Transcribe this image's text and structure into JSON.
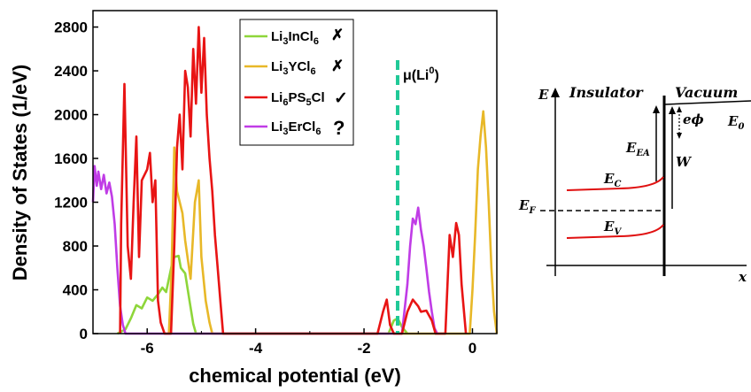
{
  "chart_data": {
    "type": "line",
    "xlabel": "chemical potential (eV)",
    "ylabel": "Density of States (1/eV)",
    "xlim": [
      -7.0,
      0.45
    ],
    "ylim": [
      0,
      2950
    ],
    "xticks": [
      "-6",
      "-4",
      "-2",
      "0"
    ],
    "yticks": [
      "0",
      "400",
      "800",
      "1200",
      "1600",
      "2000",
      "2400",
      "2800"
    ],
    "grid": false,
    "legend_position": "top-left-center",
    "vline": {
      "x": -1.38,
      "label": "μ(Li⁰)",
      "color": "#20c997"
    },
    "series": [
      {
        "name": "Li3InCl6",
        "marker": "✗",
        "marker_color": "#e01010",
        "color": "#8ed63a",
        "points": [
          [
            -6.55,
            0
          ],
          [
            -6.4,
            40
          ],
          [
            -6.3,
            140
          ],
          [
            -6.2,
            260
          ],
          [
            -6.1,
            230
          ],
          [
            -6.0,
            330
          ],
          [
            -5.9,
            300
          ],
          [
            -5.8,
            360
          ],
          [
            -5.72,
            420
          ],
          [
            -5.65,
            380
          ],
          [
            -5.6,
            500
          ],
          [
            -5.55,
            620
          ],
          [
            -5.5,
            700
          ],
          [
            -5.42,
            710
          ],
          [
            -5.38,
            600
          ],
          [
            -5.3,
            550
          ],
          [
            -5.22,
            300
          ],
          [
            -5.15,
            90
          ],
          [
            -5.1,
            0
          ],
          [
            -1.55,
            0
          ],
          [
            -1.45,
            120
          ],
          [
            -1.38,
            140
          ],
          [
            -1.3,
            60
          ],
          [
            -1.2,
            0
          ]
        ]
      },
      {
        "name": "Li3YCl6",
        "marker": "✗",
        "marker_color": "#e01010",
        "color": "#e8b828",
        "points": [
          [
            -5.6,
            0
          ],
          [
            -5.55,
            600
          ],
          [
            -5.5,
            1700
          ],
          [
            -5.45,
            1300
          ],
          [
            -5.35,
            1100
          ],
          [
            -5.3,
            850
          ],
          [
            -5.2,
            500
          ],
          [
            -5.12,
            1200
          ],
          [
            -5.05,
            1400
          ],
          [
            -5.0,
            700
          ],
          [
            -4.92,
            300
          ],
          [
            -4.85,
            100
          ],
          [
            -4.8,
            0
          ],
          [
            -0.05,
            0
          ],
          [
            0.0,
            400
          ],
          [
            0.05,
            900
          ],
          [
            0.1,
            1500
          ],
          [
            0.15,
            1800
          ],
          [
            0.2,
            2030
          ],
          [
            0.25,
            1700
          ],
          [
            0.3,
            1200
          ],
          [
            0.35,
            600
          ],
          [
            0.4,
            200
          ],
          [
            0.45,
            0
          ]
        ]
      },
      {
        "name": "Li6PS5Cl",
        "marker": "✓",
        "marker_color": "#3cc23c",
        "color": "#e81414",
        "points": [
          [
            -6.5,
            0
          ],
          [
            -6.48,
            1000
          ],
          [
            -6.42,
            2280
          ],
          [
            -6.36,
            800
          ],
          [
            -6.3,
            500
          ],
          [
            -6.25,
            1200
          ],
          [
            -6.2,
            1800
          ],
          [
            -6.15,
            700
          ],
          [
            -6.1,
            1400
          ],
          [
            -6.0,
            1500
          ],
          [
            -5.95,
            1650
          ],
          [
            -5.9,
            1200
          ],
          [
            -5.85,
            1400
          ],
          [
            -5.8,
            300
          ],
          [
            -5.75,
            100
          ],
          [
            -5.68,
            0
          ],
          [
            -5.56,
            0
          ],
          [
            -5.5,
            800
          ],
          [
            -5.45,
            1700
          ],
          [
            -5.4,
            2000
          ],
          [
            -5.35,
            1500
          ],
          [
            -5.3,
            2400
          ],
          [
            -5.25,
            2250
          ],
          [
            -5.2,
            1800
          ],
          [
            -5.15,
            2600
          ],
          [
            -5.1,
            2100
          ],
          [
            -5.05,
            2800
          ],
          [
            -5.0,
            2200
          ],
          [
            -4.95,
            2700
          ],
          [
            -4.9,
            2000
          ],
          [
            -4.85,
            1600
          ],
          [
            -4.8,
            1300
          ],
          [
            -4.75,
            900
          ],
          [
            -4.7,
            600
          ],
          [
            -4.65,
            300
          ],
          [
            -4.6,
            0
          ],
          [
            -1.75,
            0
          ],
          [
            -1.65,
            200
          ],
          [
            -1.58,
            310
          ],
          [
            -1.52,
            80
          ],
          [
            -1.45,
            0
          ],
          [
            -1.3,
            0
          ],
          [
            -1.2,
            200
          ],
          [
            -1.1,
            310
          ],
          [
            -1.0,
            250
          ],
          [
            -0.95,
            200
          ],
          [
            -0.85,
            210
          ],
          [
            -0.75,
            120
          ],
          [
            -0.68,
            0
          ],
          [
            -0.5,
            0
          ],
          [
            -0.42,
            900
          ],
          [
            -0.36,
            700
          ],
          [
            -0.3,
            1010
          ],
          [
            -0.25,
            900
          ],
          [
            -0.2,
            450
          ],
          [
            -0.12,
            0
          ]
        ]
      },
      {
        "name": "Li3ErCl6",
        "marker": "?",
        "marker_color": "#2080f0",
        "color": "#c03ce6",
        "points": [
          [
            -7.0,
            1200
          ],
          [
            -6.97,
            1530
          ],
          [
            -6.93,
            1350
          ],
          [
            -6.9,
            1480
          ],
          [
            -6.85,
            1320
          ],
          [
            -6.8,
            1450
          ],
          [
            -6.75,
            1280
          ],
          [
            -6.7,
            1380
          ],
          [
            -6.65,
            1250
          ],
          [
            -6.6,
            1000
          ],
          [
            -6.55,
            600
          ],
          [
            -6.5,
            250
          ],
          [
            -6.45,
            80
          ],
          [
            -6.4,
            0
          ],
          [
            -1.3,
            0
          ],
          [
            -1.2,
            450
          ],
          [
            -1.15,
            800
          ],
          [
            -1.1,
            1050
          ],
          [
            -1.05,
            1000
          ],
          [
            -1.0,
            1150
          ],
          [
            -0.95,
            950
          ],
          [
            -0.9,
            800
          ],
          [
            -0.85,
            600
          ],
          [
            -0.8,
            380
          ],
          [
            -0.75,
            200
          ],
          [
            -0.7,
            50
          ],
          [
            -0.65,
            0
          ]
        ]
      }
    ]
  },
  "legend": [
    {
      "base": "Li",
      "s1": "3",
      "mid": "InCl",
      "s2": "6",
      "tail": "",
      "s3": ""
    },
    {
      "base": "Li",
      "s1": "3",
      "mid": "YCl",
      "s2": "6",
      "tail": "",
      "s3": ""
    },
    {
      "base": "Li",
      "s1": "6",
      "mid": "PS",
      "s2": "5",
      "tail": "Cl",
      "s3": ""
    },
    {
      "base": "Li",
      "s1": "3",
      "mid": "ErCl",
      "s2": "6",
      "tail": "",
      "s3": ""
    }
  ],
  "vline_label": {
    "pre": "μ(Li",
    "sup": "0",
    "post": ")"
  },
  "schematic": {
    "e_axis": "E",
    "x_axis": "x",
    "insulator": "Insulator",
    "vacuum": "Vacuum",
    "e_ea": {
      "base": "E",
      "sub": "EA"
    },
    "e_phi": "eϕ",
    "w": "W",
    "e0": {
      "base": "E",
      "sub": "0"
    },
    "ec": {
      "base": "E",
      "sub": "C"
    },
    "ef": {
      "base": "E",
      "sub": "F"
    },
    "ev": {
      "base": "E",
      "sub": "V"
    },
    "band_color": "#e01010"
  }
}
